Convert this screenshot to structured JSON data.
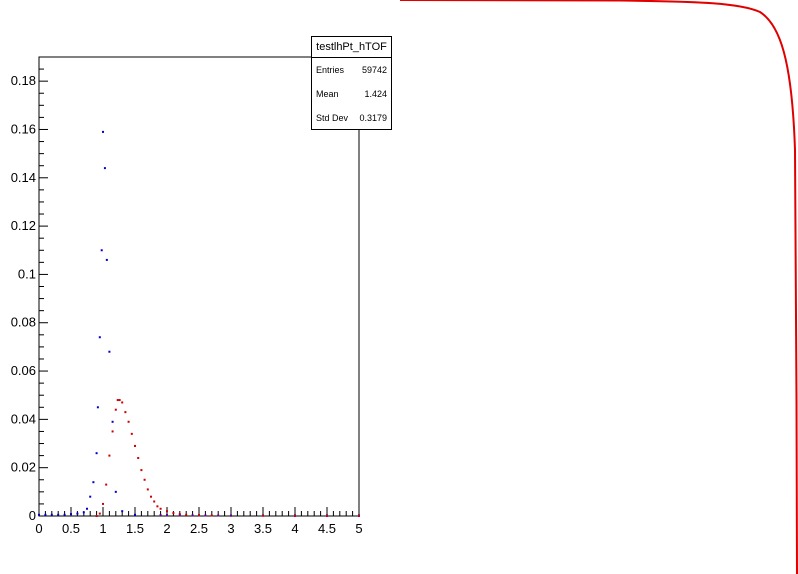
{
  "chart_data": {
    "type": "scatter",
    "title": "",
    "xlabel": "",
    "ylabel": "",
    "xlim": [
      0,
      5
    ],
    "ylim": [
      0,
      0.19
    ],
    "x_ticks": [
      "0",
      "0.5",
      "1",
      "1.5",
      "2",
      "2.5",
      "3",
      "3.5",
      "4",
      "4.5",
      "5"
    ],
    "y_ticks": [
      "0",
      "0.02",
      "0.04",
      "0.06",
      "0.08",
      "0.1",
      "0.12",
      "0.14",
      "0.16",
      "0.18"
    ],
    "grid": false,
    "series": [
      {
        "color": "#0000cc",
        "x": [
          0.0,
          0.1,
          0.2,
          0.3,
          0.4,
          0.5,
          0.6,
          0.7,
          0.75,
          0.8,
          0.85,
          0.9,
          0.92,
          0.95,
          0.98,
          1.0,
          1.03,
          1.06,
          1.1,
          1.15,
          1.2,
          1.3,
          1.5,
          2.0,
          2.5,
          3.0,
          3.5,
          4.0,
          4.5,
          5.0
        ],
        "y": [
          0.0005,
          0.0005,
          0.0005,
          0.0005,
          0.0005,
          0.0008,
          0.001,
          0.0015,
          0.003,
          0.008,
          0.014,
          0.026,
          0.045,
          0.074,
          0.11,
          0.159,
          0.144,
          0.106,
          0.068,
          0.039,
          0.01,
          0.002,
          0.0005,
          0.0003,
          0.0003,
          0.0002,
          0.0002,
          0.0002,
          0.0002,
          0.0002
        ]
      },
      {
        "color": "#cc0000",
        "x": [
          0.9,
          0.95,
          1.0,
          1.05,
          1.1,
          1.15,
          1.2,
          1.23,
          1.26,
          1.3,
          1.35,
          1.4,
          1.45,
          1.5,
          1.55,
          1.6,
          1.65,
          1.7,
          1.75,
          1.8,
          1.85,
          1.9,
          2.0,
          2.1,
          2.2,
          2.3,
          2.5,
          2.7,
          3.0,
          3.5,
          4.0,
          4.5,
          5.0
        ],
        "y": [
          0.0,
          0.001,
          0.005,
          0.013,
          0.025,
          0.035,
          0.044,
          0.048,
          0.048,
          0.047,
          0.043,
          0.039,
          0.034,
          0.029,
          0.024,
          0.019,
          0.015,
          0.011,
          0.008,
          0.006,
          0.004,
          0.003,
          0.002,
          0.0012,
          0.0008,
          0.0005,
          0.0003,
          0.0002,
          0.0001,
          0.0001,
          0.0,
          0.0,
          0.0
        ]
      },
      {
        "color": "#660099",
        "x": [
          1.9,
          2.0,
          2.2,
          2.4,
          2.6,
          2.8,
          3.0
        ],
        "y": [
          0.0004,
          0.0004,
          0.0003,
          0.0003,
          0.0002,
          0.0002,
          0.0002
        ]
      }
    ],
    "stats_box": {
      "title": "testlhPt_hTOF",
      "rows": [
        {
          "label": "Entries",
          "value": "59742"
        },
        {
          "label": "Mean",
          "value": "1.424"
        },
        {
          "label": "Std Dev",
          "value": "0.3179"
        }
      ]
    },
    "overlay_curve_color": "#e00000"
  }
}
